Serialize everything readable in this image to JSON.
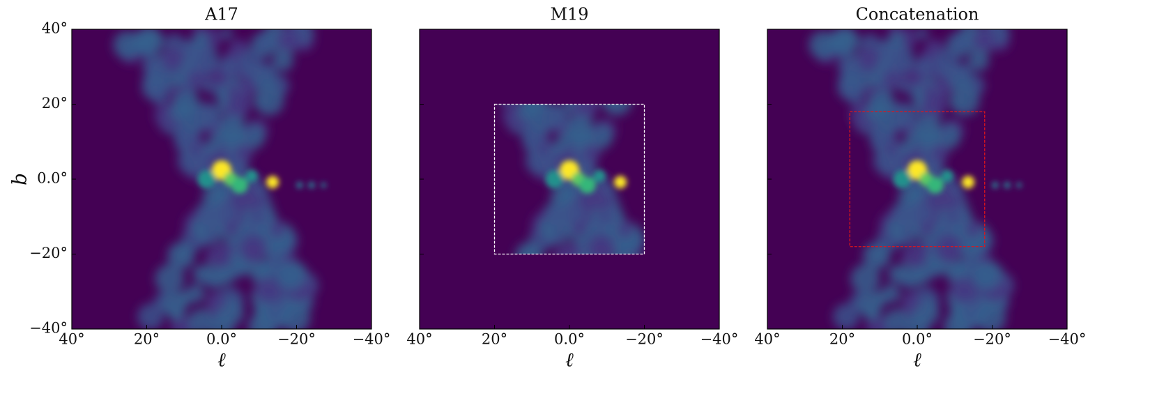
{
  "chart_data": [
    {
      "type": "heatmap",
      "title": "A17",
      "xlabel": "ℓ",
      "ylabel": "b",
      "background": "#440154",
      "xlim": [
        40,
        -40
      ],
      "ylim": [
        -40,
        40
      ],
      "xticks": [
        {
          "value": 40,
          "label": "40°"
        },
        {
          "value": 20,
          "label": "20°"
        },
        {
          "value": 0,
          "label": "0.0°"
        },
        {
          "value": -20,
          "label": "−20°"
        },
        {
          "value": -40,
          "label": "−40°"
        }
      ],
      "yticks": [
        {
          "value": -40,
          "label": "−40°"
        },
        {
          "value": -20,
          "label": "−20°"
        },
        {
          "value": 0,
          "label": "0.0°"
        },
        {
          "value": 20,
          "label": "20°"
        },
        {
          "value": 40,
          "label": "40°"
        }
      ]
    },
    {
      "type": "heatmap",
      "title": "M19",
      "xlabel": "ℓ",
      "background": "#440154",
      "xlim": [
        40,
        -40
      ],
      "ylim": [
        -40,
        40
      ],
      "xticks": [
        {
          "value": 40,
          "label": "40°"
        },
        {
          "value": 20,
          "label": "20°"
        },
        {
          "value": 0,
          "label": "0.0°"
        },
        {
          "value": -20,
          "label": "−20°"
        },
        {
          "value": -40,
          "label": "−40°"
        }
      ],
      "box": {
        "xlim": [
          20,
          -20
        ],
        "ylim": [
          -20,
          20
        ],
        "color": "#ffffff"
      }
    },
    {
      "type": "heatmap",
      "title": "Concatenation",
      "xlabel": "ℓ",
      "background": "#440154",
      "xlim": [
        40,
        -40
      ],
      "ylim": [
        -40,
        40
      ],
      "xticks": [
        {
          "value": 40,
          "label": "40°"
        },
        {
          "value": 20,
          "label": "20°"
        },
        {
          "value": 0,
          "label": "0.0°"
        },
        {
          "value": -20,
          "label": "−20°"
        },
        {
          "value": -40,
          "label": "−40°"
        }
      ],
      "box": {
        "xlim": [
          18,
          -18
        ],
        "ylim": [
          -18,
          18
        ],
        "color": "#e0151b"
      }
    }
  ]
}
